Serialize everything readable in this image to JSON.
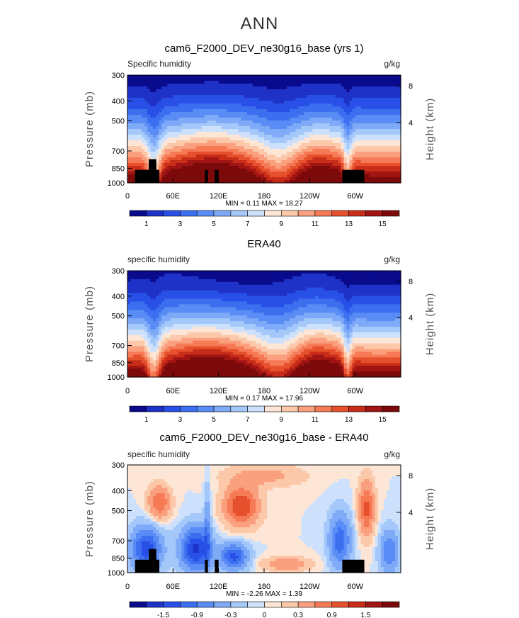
{
  "figure_title": "ANN",
  "colors": {
    "cmap_full": [
      "#0a0a8c",
      "#1e32c8",
      "#2850e6",
      "#3c6ef0",
      "#5a8cf5",
      "#7eaaf8",
      "#a5c8fa",
      "#cde1fc",
      "#fde6d6",
      "#fcc8aa",
      "#faa07e",
      "#f57a55",
      "#e6502d",
      "#c82d19",
      "#a01414",
      "#7d0a0a"
    ],
    "land_mask": "#000000"
  },
  "chart_data": [
    {
      "type": "heatmap",
      "title": "cam6_F2000_DEV_ne30g16_base (yrs 1)",
      "variable_label": "Specific humidity",
      "units": "g/kg",
      "ylabel": "Pressure (mb)",
      "y2label": "Height (km)",
      "yticks": [
        "300",
        "400",
        "500",
        "700",
        "850",
        "1000"
      ],
      "y2ticks": [
        "8",
        "4"
      ],
      "xticks": [
        "0",
        "60E",
        "120E",
        "180",
        "120W",
        "60W"
      ],
      "stats": {
        "min_label": "MIN =",
        "min": "0.11",
        "max_label": "MAX =",
        "max": "18.27"
      },
      "colorbar_labels": [
        "1",
        "3",
        "5",
        "7",
        "9",
        "11",
        "13",
        "15"
      ],
      "min": 0.11,
      "max": 18.27
    },
    {
      "type": "heatmap",
      "title": "ERA40",
      "variable_label": "specific humidity",
      "units": "g/kg",
      "ylabel": "Pressure (mb)",
      "y2label": "Height (km)",
      "yticks": [
        "300",
        "400",
        "500",
        "700",
        "850",
        "1000"
      ],
      "y2ticks": [
        "8",
        "4"
      ],
      "xticks": [
        "0",
        "60E",
        "120E",
        "180",
        "120W",
        "60W"
      ],
      "stats": {
        "min_label": "MIN =",
        "min": "0.17",
        "max_label": "MAX =",
        "max": "17.96"
      },
      "colorbar_labels": [
        "1",
        "3",
        "5",
        "7",
        "9",
        "11",
        "13",
        "15"
      ],
      "min": 0.17,
      "max": 17.96
    },
    {
      "type": "heatmap",
      "title": "cam6_F2000_DEV_ne30g16_base - ERA40",
      "variable_label": "specific humidity",
      "units": "g/kg",
      "ylabel": "Pressure (mb)",
      "y2label": "Height (km)",
      "yticks": [
        "300",
        "400",
        "500",
        "700",
        "850",
        "1000"
      ],
      "y2ticks": [
        "8",
        "4"
      ],
      "xticks": [
        "0",
        "60E",
        "120E",
        "180",
        "120W",
        "60W"
      ],
      "stats": {
        "min_label": "MIN =",
        "min": "-2.26",
        "max_label": "MAX =",
        "max": "1.39"
      },
      "colorbar_labels": [
        "-1.5",
        "-0.9",
        "-0.3",
        "0",
        "0.3",
        "0.9",
        "1.5"
      ],
      "min": -2.26,
      "max": 1.39
    }
  ]
}
